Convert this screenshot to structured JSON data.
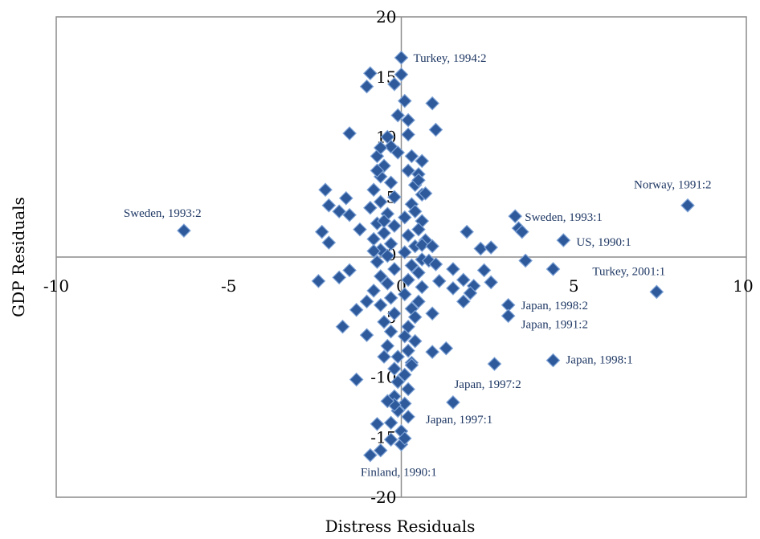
{
  "chart_data": {
    "type": "scatter",
    "title": "",
    "xlabel": "Distress Residuals",
    "ylabel": "GDP Residuals",
    "xlim": [
      -10,
      10
    ],
    "ylim": [
      -20,
      20
    ],
    "xticks": [
      -10,
      -5,
      0,
      5,
      10
    ],
    "yticks": [
      -20,
      -15,
      -10,
      -5,
      0,
      5,
      10,
      15,
      20
    ],
    "xtick_labels": [
      "-10",
      "-5",
      "0",
      "5",
      "10"
    ],
    "ytick_labels": [
      "-20",
      "-15",
      "-10",
      "-5",
      "0",
      "5",
      "10",
      "15",
      "20"
    ],
    "grid": false,
    "legend": "none",
    "marker": "diamond",
    "marker_color": "#2e5a9c",
    "marker_edge_color": "#7fa3d6",
    "annotations": [
      {
        "text": "Turkey, 1994:2",
        "x": 0.0,
        "y": 16.6
      },
      {
        "text": "Sweden, 1993:2",
        "x": -6.3,
        "y": 2.2
      },
      {
        "text": "Norway, 1991:2",
        "x": 8.3,
        "y": 4.3
      },
      {
        "text": "Sweden, 1993:1",
        "x": 3.3,
        "y": 3.4
      },
      {
        "text": "US, 1990:1",
        "x": 4.7,
        "y": 1.4
      },
      {
        "text": "Turkey, 2001:1",
        "x": 7.4,
        "y": -2.9
      },
      {
        "text": "Japan, 1998:2",
        "x": 3.1,
        "y": -4.0
      },
      {
        "text": "Japan, 1991:2",
        "x": 3.1,
        "y": -4.9
      },
      {
        "text": "Japan, 1998:1",
        "x": 4.4,
        "y": -8.6
      },
      {
        "text": "Japan, 1997:2",
        "x": 2.7,
        "y": -8.9
      },
      {
        "text": "Japan, 1997:1",
        "x": 1.5,
        "y": -12.1
      },
      {
        "text": "Finland, 1990:1",
        "x": -0.9,
        "y": -16.5
      }
    ],
    "points": [
      [
        0.0,
        16.6
      ],
      [
        -0.9,
        15.3
      ],
      [
        -1.0,
        14.2
      ],
      [
        -0.2,
        14.4
      ],
      [
        0.0,
        15.2
      ],
      [
        0.1,
        13.0
      ],
      [
        0.9,
        12.8
      ],
      [
        1.0,
        10.6
      ],
      [
        -1.5,
        10.3
      ],
      [
        -0.1,
        11.8
      ],
      [
        0.2,
        11.4
      ],
      [
        -0.4,
        10.0
      ],
      [
        0.2,
        10.2
      ],
      [
        -0.3,
        9.2
      ],
      [
        -0.1,
        8.7
      ],
      [
        0.3,
        8.4
      ],
      [
        -0.7,
        8.4
      ],
      [
        -0.5,
        7.6
      ],
      [
        0.2,
        7.2
      ],
      [
        -0.6,
        6.7
      ],
      [
        0.5,
        6.9
      ],
      [
        -0.3,
        6.2
      ],
      [
        0.4,
        6.0
      ],
      [
        -0.8,
        5.6
      ],
      [
        0.6,
        5.2
      ],
      [
        -0.2,
        5.0
      ],
      [
        0.7,
        5.3
      ],
      [
        -0.6,
        4.6
      ],
      [
        0.3,
        4.4
      ],
      [
        -0.9,
        4.1
      ],
      [
        0.4,
        3.8
      ],
      [
        -0.4,
        3.6
      ],
      [
        0.1,
        3.3
      ],
      [
        0.6,
        3.0
      ],
      [
        -0.7,
        2.8
      ],
      [
        -0.2,
        2.6
      ],
      [
        0.5,
        2.3
      ],
      [
        -0.5,
        2.0
      ],
      [
        0.2,
        1.8
      ],
      [
        -0.8,
        1.5
      ],
      [
        0.7,
        1.4
      ],
      [
        -0.3,
        1.1
      ],
      [
        0.4,
        0.9
      ],
      [
        -0.6,
        0.6
      ],
      [
        0.1,
        0.4
      ],
      [
        -0.4,
        0.1
      ],
      [
        0.6,
        -0.2
      ],
      [
        -0.7,
        -0.4
      ],
      [
        0.3,
        -0.7
      ],
      [
        -0.2,
        -1.0
      ],
      [
        0.5,
        -1.3
      ],
      [
        -0.6,
        -1.6
      ],
      [
        0.2,
        -1.9
      ],
      [
        -0.4,
        -2.2
      ],
      [
        0.6,
        -2.5
      ],
      [
        -0.8,
        -2.8
      ],
      [
        0.1,
        -3.1
      ],
      [
        -0.3,
        -3.4
      ],
      [
        0.5,
        -3.7
      ],
      [
        -0.6,
        -4.0
      ],
      [
        0.3,
        -4.3
      ],
      [
        -0.2,
        -4.7
      ],
      [
        0.4,
        -5.0
      ],
      [
        -0.5,
        -5.4
      ],
      [
        0.2,
        -5.8
      ],
      [
        -0.3,
        -6.2
      ],
      [
        0.1,
        -6.6
      ],
      [
        0.4,
        -7.0
      ],
      [
        -0.4,
        -7.4
      ],
      [
        0.2,
        -7.8
      ],
      [
        -0.1,
        -8.3
      ],
      [
        0.3,
        -8.8
      ],
      [
        -0.2,
        -9.3
      ],
      [
        0.1,
        -9.8
      ],
      [
        -0.1,
        -10.4
      ],
      [
        0.2,
        -11.0
      ],
      [
        -0.2,
        -11.6
      ],
      [
        0.1,
        -12.2
      ],
      [
        -0.1,
        -12.8
      ],
      [
        0.2,
        -13.3
      ],
      [
        -0.3,
        -13.8
      ],
      [
        0.0,
        -14.5
      ],
      [
        -0.3,
        -15.2
      ],
      [
        0.0,
        -15.6
      ],
      [
        -0.6,
        -16.1
      ],
      [
        -0.9,
        -16.5
      ],
      [
        -0.7,
        -13.9
      ],
      [
        -2.2,
        5.6
      ],
      [
        -2.1,
        4.3
      ],
      [
        -1.6,
        4.9
      ],
      [
        -1.8,
        3.8
      ],
      [
        -1.5,
        3.5
      ],
      [
        -1.2,
        2.3
      ],
      [
        -2.3,
        2.1
      ],
      [
        -2.1,
        1.2
      ],
      [
        -0.7,
        7.2
      ],
      [
        -0.6,
        9.1
      ],
      [
        0.6,
        8.0
      ],
      [
        0.5,
        6.4
      ],
      [
        -0.5,
        3.0
      ],
      [
        0.6,
        1.0
      ],
      [
        0.8,
        -0.3
      ],
      [
        0.9,
        0.9
      ],
      [
        -0.8,
        0.5
      ],
      [
        1.0,
        -0.6
      ],
      [
        1.5,
        -1.0
      ],
      [
        1.1,
        -2.0
      ],
      [
        1.5,
        -2.6
      ],
      [
        1.8,
        -1.9
      ],
      [
        2.1,
        -2.4
      ],
      [
        1.8,
        -3.7
      ],
      [
        2.0,
        -3.0
      ],
      [
        1.9,
        2.1
      ],
      [
        2.3,
        0.7
      ],
      [
        2.6,
        0.8
      ],
      [
        2.4,
        -1.1
      ],
      [
        2.6,
        -2.1
      ],
      [
        3.3,
        3.4
      ],
      [
        3.4,
        2.4
      ],
      [
        3.5,
        2.1
      ],
      [
        3.6,
        -0.3
      ],
      [
        4.7,
        1.4
      ],
      [
        4.4,
        -1.0
      ],
      [
        3.1,
        -4.0
      ],
      [
        3.1,
        -4.9
      ],
      [
        4.4,
        -8.6
      ],
      [
        2.7,
        -8.9
      ],
      [
        1.5,
        -12.1
      ],
      [
        8.3,
        4.3
      ],
      [
        7.4,
        -2.9
      ],
      [
        -6.3,
        2.2
      ],
      [
        -2.4,
        -2.0
      ],
      [
        -1.8,
        -1.7
      ],
      [
        -1.5,
        -1.1
      ],
      [
        -1.3,
        -4.4
      ],
      [
        -1.7,
        -5.8
      ],
      [
        -1.3,
        -10.2
      ],
      [
        -1.0,
        -3.7
      ],
      [
        -1.0,
        -6.5
      ],
      [
        -0.5,
        -8.3
      ],
      [
        0.9,
        -4.7
      ],
      [
        0.9,
        -7.9
      ],
      [
        1.3,
        -7.6
      ],
      [
        -0.2,
        -12.3
      ],
      [
        0.1,
        -15.1
      ],
      [
        -0.4,
        -12.0
      ],
      [
        0.3,
        -9.0
      ]
    ]
  }
}
